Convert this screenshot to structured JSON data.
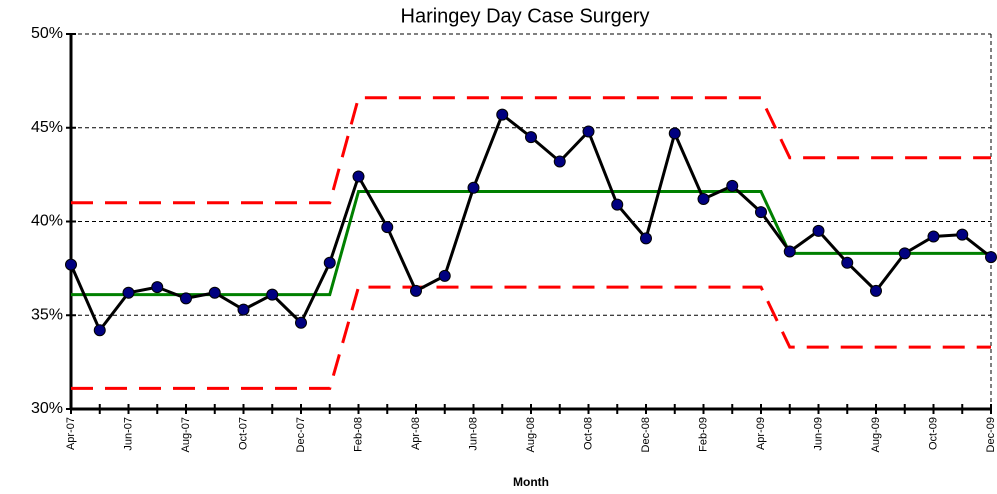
{
  "chart_data": {
    "type": "line",
    "title": "Haringey Day Case Surgery",
    "x_label": "Month",
    "categories": [
      "Apr-07",
      null,
      "Jun-07",
      null,
      "Aug-07",
      null,
      "Oct-07",
      null,
      "Dec-07",
      null,
      "Feb-08",
      null,
      "Apr-08",
      null,
      "Jun-08",
      null,
      "Aug-08",
      null,
      "Oct-08",
      null,
      "Dec-08",
      null,
      "Feb-09",
      null,
      "Apr-09",
      null,
      "Jun-09",
      null,
      "Aug-09",
      null,
      "Oct-09",
      null,
      "Dec-09"
    ],
    "series": [
      {
        "color": "#ff0000",
        "style": "dashed",
        "marker": false,
        "values": [
          41.0,
          41.0,
          41.0,
          41.0,
          41.0,
          41.0,
          41.0,
          41.0,
          41.0,
          41.0,
          46.6,
          46.6,
          46.6,
          46.6,
          46.6,
          46.6,
          46.6,
          46.6,
          46.6,
          46.6,
          46.6,
          46.6,
          46.6,
          46.6,
          46.6,
          43.4,
          43.4,
          43.4,
          43.4,
          43.4,
          43.4,
          43.4,
          43.4
        ]
      },
      {
        "color": "#ff0000",
        "style": "dashed",
        "marker": false,
        "values": [
          31.1,
          31.1,
          31.1,
          31.1,
          31.1,
          31.1,
          31.1,
          31.1,
          31.1,
          31.1,
          36.5,
          36.5,
          36.5,
          36.5,
          36.5,
          36.5,
          36.5,
          36.5,
          36.5,
          36.5,
          36.5,
          36.5,
          36.5,
          36.5,
          36.5,
          33.3,
          33.3,
          33.3,
          33.3,
          33.3,
          33.3,
          33.3,
          33.3
        ]
      },
      {
        "color": "#008000",
        "style": "solid",
        "marker": false,
        "values": [
          36.1,
          36.1,
          36.1,
          36.1,
          36.1,
          36.1,
          36.1,
          36.1,
          36.1,
          36.1,
          41.6,
          41.6,
          41.6,
          41.6,
          41.6,
          41.6,
          41.6,
          41.6,
          41.6,
          41.6,
          41.6,
          41.6,
          41.6,
          41.6,
          41.6,
          38.3,
          38.3,
          38.3,
          38.3,
          38.3,
          38.3,
          38.3,
          38.3
        ]
      },
      {
        "color": "#000000",
        "style": "solid",
        "marker": true,
        "marker_color": "#000080",
        "values": [
          37.7,
          34.2,
          36.2,
          36.5,
          35.9,
          36.2,
          35.3,
          36.1,
          34.6,
          37.8,
          42.4,
          39.7,
          36.3,
          37.1,
          41.8,
          45.7,
          44.5,
          43.2,
          44.8,
          40.9,
          39.1,
          44.7,
          41.2,
          41.9,
          40.5,
          38.4,
          39.5,
          37.8,
          36.3,
          38.3,
          39.2,
          39.3,
          38.1
        ]
      }
    ],
    "ylim": [
      30,
      50
    ],
    "yticks": [
      {
        "value": 30,
        "label": "30%"
      },
      {
        "value": 35,
        "label": "35%"
      },
      {
        "value": 40,
        "label": "40%"
      },
      {
        "value": 45,
        "label": "45%"
      },
      {
        "value": 50,
        "label": "50%"
      }
    ],
    "grid": true
  }
}
